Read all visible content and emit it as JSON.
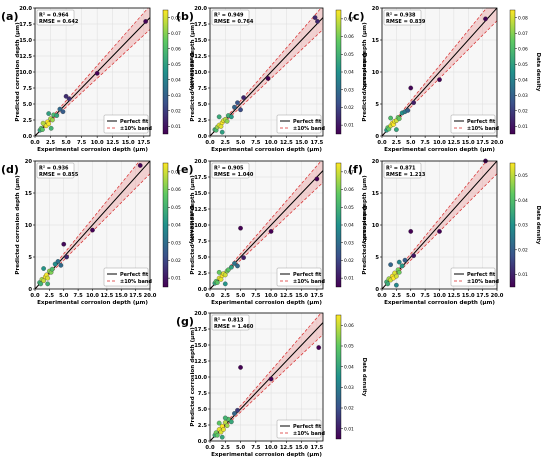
{
  "figure": {
    "legend": {
      "perfect": "Perfect fit",
      "band": "±10% band"
    },
    "colorbar_label": "Data density"
  },
  "chart_data": [
    {
      "type": "scatter",
      "panel": "(a)",
      "metrics": [
        "R² = 0.964",
        "RMSE = 0.642"
      ],
      "xlabel": "Experimental corrosion depth (μm)",
      "ylabel": "Predicted corrosion depth (μm)",
      "xlim": [
        0,
        18.5
      ],
      "ylim": [
        0,
        20
      ],
      "xticks": [
        0.0,
        2.5,
        5.0,
        7.5,
        10.0,
        12.5,
        15.0,
        17.5
      ],
      "yticks": [
        0.0,
        2.5,
        5.0,
        7.5,
        10.0,
        12.5,
        15.0,
        17.5,
        20.0
      ],
      "colorbar": {
        "ticks": [
          0.01,
          0.02,
          0.03,
          0.04,
          0.05,
          0.06,
          0.07,
          0.08
        ]
      },
      "points": [
        [
          0.8,
          0.9
        ],
        [
          1.0,
          1.2
        ],
        [
          1.2,
          1.0
        ],
        [
          1.5,
          1.8
        ],
        [
          1.8,
          1.6
        ],
        [
          2.0,
          2.2
        ],
        [
          2.2,
          1.9
        ],
        [
          2.5,
          2.7
        ],
        [
          2.8,
          2.5
        ],
        [
          3.0,
          3.3
        ],
        [
          1.3,
          2.0
        ],
        [
          2.2,
          3.5
        ],
        [
          2.6,
          1.2
        ],
        [
          3.5,
          3.2
        ],
        [
          4.0,
          4.2
        ],
        [
          4.5,
          3.8
        ],
        [
          5.0,
          6.2
        ],
        [
          5.5,
          5.8
        ],
        [
          10.0,
          9.8
        ],
        [
          17.8,
          17.9
        ]
      ]
    },
    {
      "type": "scatter",
      "panel": "(b)",
      "metrics": [
        "R² = 0.949",
        "RMSE = 0.764"
      ],
      "xlabel": "Experimental corrosion depth (μm)",
      "ylabel": "Predicted corrosion depth (μm)",
      "xlim": [
        0,
        18.5
      ],
      "ylim": [
        0,
        20
      ],
      "xticks": [
        0.0,
        2.5,
        5.0,
        7.5,
        10.0,
        12.5,
        15.0,
        17.5
      ],
      "yticks": [
        0.0,
        2.5,
        5.0,
        7.5,
        10.0,
        12.5,
        15.0,
        17.5,
        20.0
      ],
      "colorbar": {
        "ticks": [
          0.01,
          0.02,
          0.03,
          0.04,
          0.05,
          0.06,
          0.07
        ]
      },
      "points": [
        [
          0.8,
          1.0
        ],
        [
          1.0,
          0.9
        ],
        [
          1.2,
          1.4
        ],
        [
          1.5,
          1.7
        ],
        [
          1.8,
          1.5
        ],
        [
          2.0,
          2.1
        ],
        [
          2.2,
          2.4
        ],
        [
          2.5,
          2.6
        ],
        [
          2.8,
          2.3
        ],
        [
          3.0,
          3.2
        ],
        [
          1.5,
          3.0
        ],
        [
          2.0,
          0.6
        ],
        [
          3.5,
          3.0
        ],
        [
          4.0,
          4.5
        ],
        [
          4.5,
          5.2
        ],
        [
          5.0,
          4.1
        ],
        [
          5.5,
          6.0
        ],
        [
          9.5,
          9.0
        ],
        [
          17.2,
          18.5
        ],
        [
          17.6,
          17.9
        ]
      ]
    },
    {
      "type": "scatter",
      "panel": "(c)",
      "metrics": [
        "R² = 0.938",
        "RMSE = 0.839"
      ],
      "xlabel": "Experimental corrosion depth (μm)",
      "ylabel": "Predicted corrosion depth (μm)",
      "xlim": [
        0,
        20
      ],
      "ylim": [
        0,
        20
      ],
      "xticks": [
        0.0,
        2.5,
        5.0,
        7.5,
        10.0,
        12.5,
        15.0,
        17.5,
        20.0
      ],
      "yticks": [
        0,
        5,
        10,
        15,
        20
      ],
      "colorbar": {
        "ticks": [
          0.01,
          0.02,
          0.03,
          0.04,
          0.05,
          0.06,
          0.07,
          0.08
        ]
      },
      "points": [
        [
          0.8,
          0.9
        ],
        [
          1.0,
          1.3
        ],
        [
          1.2,
          1.1
        ],
        [
          1.5,
          1.6
        ],
        [
          1.8,
          2.0
        ],
        [
          2.0,
          1.8
        ],
        [
          2.2,
          2.3
        ],
        [
          2.5,
          2.4
        ],
        [
          2.8,
          2.9
        ],
        [
          3.0,
          2.7
        ],
        [
          1.5,
          2.8
        ],
        [
          2.5,
          1.0
        ],
        [
          3.5,
          3.6
        ],
        [
          4.0,
          3.8
        ],
        [
          4.5,
          4.0
        ],
        [
          5.0,
          7.5
        ],
        [
          5.5,
          5.2
        ],
        [
          10.0,
          8.8
        ],
        [
          18.0,
          18.3
        ]
      ]
    },
    {
      "type": "scatter",
      "panel": "(d)",
      "metrics": [
        "R² = 0.936",
        "RMSE = 0.855"
      ],
      "xlabel": "Experimental corrosion depth (μm)",
      "ylabel": "Predicted corrosion depth (μm)",
      "xlim": [
        0,
        20
      ],
      "ylim": [
        0,
        20
      ],
      "xticks": [
        0.0,
        2.5,
        5.0,
        7.5,
        10.0,
        12.5,
        15.0,
        17.5,
        20.0
      ],
      "yticks": [
        0,
        5,
        10,
        15,
        20
      ],
      "colorbar": {
        "ticks": [
          0.01,
          0.02,
          0.03,
          0.04,
          0.05,
          0.06,
          0.07
        ]
      },
      "points": [
        [
          0.8,
          1.0
        ],
        [
          1.0,
          0.8
        ],
        [
          1.2,
          1.5
        ],
        [
          1.5,
          1.3
        ],
        [
          1.8,
          1.9
        ],
        [
          2.0,
          2.2
        ],
        [
          2.2,
          1.7
        ],
        [
          2.5,
          2.8
        ],
        [
          2.8,
          2.6
        ],
        [
          3.0,
          3.1
        ],
        [
          1.5,
          3.2
        ],
        [
          2.2,
          0.8
        ],
        [
          3.5,
          3.9
        ],
        [
          4.0,
          4.3
        ],
        [
          4.5,
          3.7
        ],
        [
          5.0,
          7.0
        ],
        [
          5.5,
          5.0
        ],
        [
          10.0,
          9.2
        ],
        [
          18.3,
          19.3
        ]
      ]
    },
    {
      "type": "scatter",
      "panel": "(e)",
      "metrics": [
        "R² = 0.905",
        "RMSE = 1.040"
      ],
      "xlabel": "Experimental corrosion depth (μm)",
      "ylabel": "Predicted corrosion depth (μm)",
      "xlim": [
        0,
        18.5
      ],
      "ylim": [
        0,
        20
      ],
      "xticks": [
        0.0,
        2.5,
        5.0,
        7.5,
        10.0,
        12.5,
        15.0,
        17.5
      ],
      "yticks": [
        0.0,
        2.5,
        5.0,
        7.5,
        10.0,
        12.5,
        15.0,
        17.5,
        20.0
      ],
      "colorbar": {
        "ticks": [
          0.01,
          0.02,
          0.03,
          0.04,
          0.05,
          0.06,
          0.07
        ]
      },
      "points": [
        [
          0.8,
          0.9
        ],
        [
          1.0,
          1.2
        ],
        [
          1.2,
          1.0
        ],
        [
          1.5,
          1.7
        ],
        [
          1.8,
          1.5
        ],
        [
          2.0,
          2.1
        ],
        [
          2.2,
          2.4
        ],
        [
          2.5,
          2.2
        ],
        [
          2.8,
          2.8
        ],
        [
          3.0,
          3.0
        ],
        [
          1.5,
          2.6
        ],
        [
          2.5,
          0.8
        ],
        [
          3.5,
          3.4
        ],
        [
          4.0,
          4.0
        ],
        [
          4.5,
          3.6
        ],
        [
          5.0,
          9.5
        ],
        [
          5.5,
          4.9
        ],
        [
          10.0,
          9.0
        ],
        [
          17.5,
          17.2
        ]
      ]
    },
    {
      "type": "scatter",
      "panel": "(f)",
      "metrics": [
        "R² = 0.871",
        "RMSE = 1.213"
      ],
      "xlabel": "Experimental corrosion depth (μm)",
      "ylabel": "Predicted corrosion depth (μm)",
      "xlim": [
        0,
        20
      ],
      "ylim": [
        0,
        20
      ],
      "xticks": [
        0.0,
        2.5,
        5.0,
        7.5,
        10.0,
        12.5,
        15.0,
        17.5,
        20.0
      ],
      "yticks": [
        0,
        5,
        10,
        15,
        20
      ],
      "colorbar": {
        "ticks": [
          0.01,
          0.02,
          0.03,
          0.04,
          0.05
        ]
      },
      "points": [
        [
          0.8,
          1.1
        ],
        [
          1.0,
          0.8
        ],
        [
          1.2,
          1.6
        ],
        [
          1.5,
          1.4
        ],
        [
          1.8,
          2.0
        ],
        [
          2.0,
          1.7
        ],
        [
          2.2,
          2.5
        ],
        [
          2.5,
          2.0
        ],
        [
          2.8,
          3.0
        ],
        [
          3.0,
          2.6
        ],
        [
          1.5,
          3.8
        ],
        [
          2.5,
          0.6
        ],
        [
          3.0,
          4.2
        ],
        [
          3.5,
          3.6
        ],
        [
          4.0,
          4.5
        ],
        [
          5.0,
          9.0
        ],
        [
          5.5,
          5.2
        ],
        [
          10.0,
          9.0
        ],
        [
          18.0,
          20.0
        ]
      ]
    },
    {
      "type": "scatter",
      "panel": "(g)",
      "metrics": [
        "R² = 0.813",
        "RMSE = 1.460"
      ],
      "xlabel": "Experimental corrosion depth (μm)",
      "ylabel": "Predicted corrosion depth (μm)",
      "xlim": [
        0,
        18.5
      ],
      "ylim": [
        0,
        20
      ],
      "xticks": [
        0.0,
        2.5,
        5.0,
        7.5,
        10.0,
        12.5,
        15.0,
        17.5
      ],
      "yticks": [
        0.0,
        2.5,
        5.0,
        7.5,
        10.0,
        12.5,
        15.0,
        17.5,
        20.0
      ],
      "colorbar": {
        "ticks": [
          0.01,
          0.02,
          0.03,
          0.04,
          0.05,
          0.06
        ]
      },
      "points": [
        [
          0.8,
          0.9
        ],
        [
          1.0,
          1.3
        ],
        [
          1.2,
          0.9
        ],
        [
          1.5,
          1.8
        ],
        [
          1.8,
          1.4
        ],
        [
          2.0,
          2.3
        ],
        [
          2.2,
          1.8
        ],
        [
          2.5,
          2.9
        ],
        [
          2.8,
          2.4
        ],
        [
          3.0,
          3.4
        ],
        [
          1.5,
          2.8
        ],
        [
          2.0,
          0.6
        ],
        [
          2.5,
          3.6
        ],
        [
          3.5,
          3.0
        ],
        [
          4.0,
          4.3
        ],
        [
          4.5,
          4.8
        ],
        [
          5.0,
          11.5
        ],
        [
          10.0,
          9.7
        ],
        [
          17.8,
          14.6
        ]
      ]
    }
  ]
}
